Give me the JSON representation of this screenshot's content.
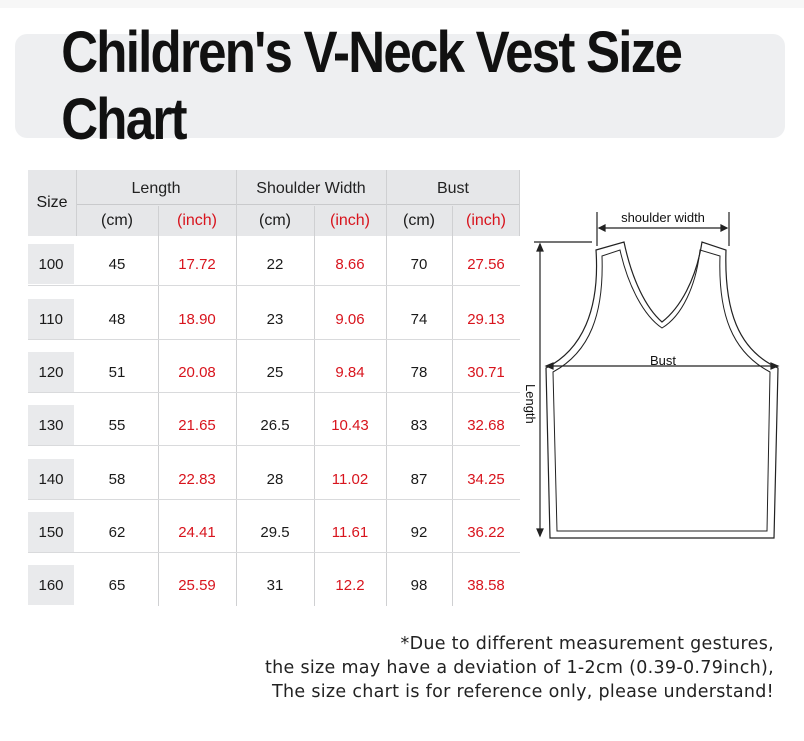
{
  "title": "Children's V-Neck Vest Size Chart",
  "table": {
    "size_header": "Size",
    "groups": [
      {
        "label": "Length",
        "units": [
          "(cm)",
          "(inch)"
        ]
      },
      {
        "label": "Shoulder Width",
        "units": [
          "(cm)",
          "(inch)"
        ]
      },
      {
        "label": "Bust",
        "units": [
          "(cm)",
          "(inch)"
        ]
      }
    ],
    "rows": [
      {
        "size": "100",
        "length_cm": "45",
        "length_in": "17.72",
        "shoulder_cm": "22",
        "shoulder_in": "8.66",
        "bust_cm": "70",
        "bust_in": "27.56"
      },
      {
        "size": "110",
        "length_cm": "48",
        "length_in": "18.90",
        "shoulder_cm": "23",
        "shoulder_in": "9.06",
        "bust_cm": "74",
        "bust_in": "29.13"
      },
      {
        "size": "120",
        "length_cm": "51",
        "length_in": "20.08",
        "shoulder_cm": "25",
        "shoulder_in": "9.84",
        "bust_cm": "78",
        "bust_in": "30.71"
      },
      {
        "size": "130",
        "length_cm": "55",
        "length_in": "21.65",
        "shoulder_cm": "26.5",
        "shoulder_in": "10.43",
        "bust_cm": "83",
        "bust_in": "32.68"
      },
      {
        "size": "140",
        "length_cm": "58",
        "length_in": "22.83",
        "shoulder_cm": "28",
        "shoulder_in": "11.02",
        "bust_cm": "87",
        "bust_in": "34.25"
      },
      {
        "size": "150",
        "length_cm": "62",
        "length_in": "24.41",
        "shoulder_cm": "29.5",
        "shoulder_in": "11.61",
        "bust_cm": "92",
        "bust_in": "36.22"
      },
      {
        "size": "160",
        "length_cm": "65",
        "length_in": "25.59",
        "shoulder_cm": "31",
        "shoulder_in": "12.2",
        "bust_cm": "98",
        "bust_in": "38.58"
      }
    ]
  },
  "diagram": {
    "shoulder_label": "shoulder width",
    "bust_label": "Bust",
    "length_label": "Length"
  },
  "note": {
    "line1": "*Due to different measurement gestures,",
    "line2": "the size may have a deviation of 1-2cm (0.39-0.79inch),",
    "line3": "The size chart is for reference only, please understand!"
  },
  "colors": {
    "accent_red": "#d8141d",
    "header_gray": "#e6e7e9",
    "title_card": "#eeeff1"
  }
}
